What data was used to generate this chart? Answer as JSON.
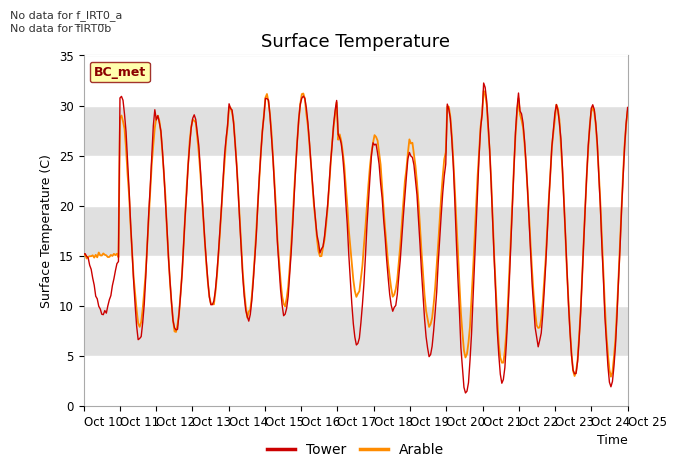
{
  "title": "Surface Temperature",
  "ylabel": "Surface Temperature (C)",
  "xlabel": "Time",
  "ylim": [
    0,
    35
  ],
  "yticks": [
    0,
    5,
    10,
    15,
    20,
    25,
    30,
    35
  ],
  "xtick_labels": [
    "Oct 10",
    "Oct 11",
    "Oct 12",
    "Oct 13",
    "Oct 14",
    "Oct 15",
    "Oct 16",
    "Oct 17",
    "Oct 18",
    "Oct 19",
    "Oct 20",
    "Oct 21",
    "Oct 22",
    "Oct 23",
    "Oct 24",
    "Oct 25"
  ],
  "no_data_text_1": "No data for f_IRT0_a",
  "no_data_text_2": "No data for f̅IRT0̅b",
  "legend_box_label": "BC_met",
  "legend_box_facecolor": "#FFFF99",
  "legend_box_edgecolor": "#8B0000",
  "legend_box_textcolor": "#8B0000",
  "tower_color": "#CC0000",
  "arable_color": "#FF8C00",
  "band_colors_even": "#FFFFFF",
  "band_colors_odd": "#E0E0E0",
  "fig_bg": "#FFFFFF",
  "title_fontsize": 13,
  "label_fontsize": 9,
  "tick_fontsize": 8.5
}
